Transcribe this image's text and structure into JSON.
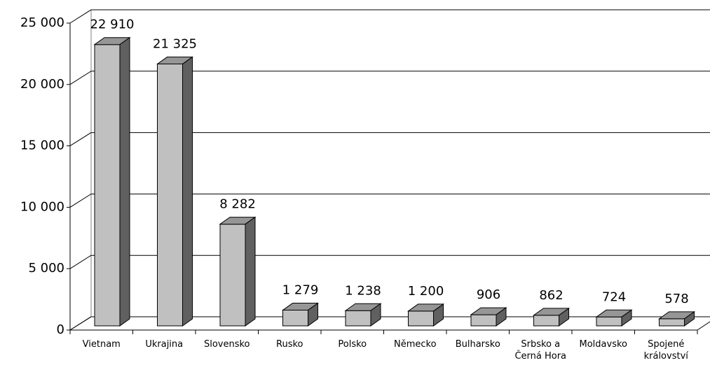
{
  "chart_data": {
    "type": "bar3d",
    "categories": [
      "Vietnam",
      "Ukrajina",
      "Slovensko",
      "Rusko",
      "Polsko",
      "Německo",
      "Bulharsko",
      "Srbsko a Černá Hora",
      "Moldavsko",
      "Spojené království"
    ],
    "values": [
      22910,
      21325,
      8282,
      1279,
      1238,
      1200,
      906,
      862,
      724,
      578
    ],
    "value_labels": [
      "22 910",
      "21 325",
      "8 282",
      "1 279",
      "1 238",
      "1 200",
      "906",
      "862",
      "724",
      "578"
    ],
    "color": "#c0c0c0",
    "ylim": [
      0,
      25000
    ],
    "yticks": [
      0,
      {
        "value": 5000,
        "label": "5 000"
      },
      {
        "value": 10000,
        "label": "10 000"
      },
      {
        "value": 15000,
        "label": "15 000"
      },
      {
        "value": 20000,
        "label": "20 000"
      },
      {
        "value": 25000,
        "label": "25 000"
      }
    ],
    "grid": true
  }
}
